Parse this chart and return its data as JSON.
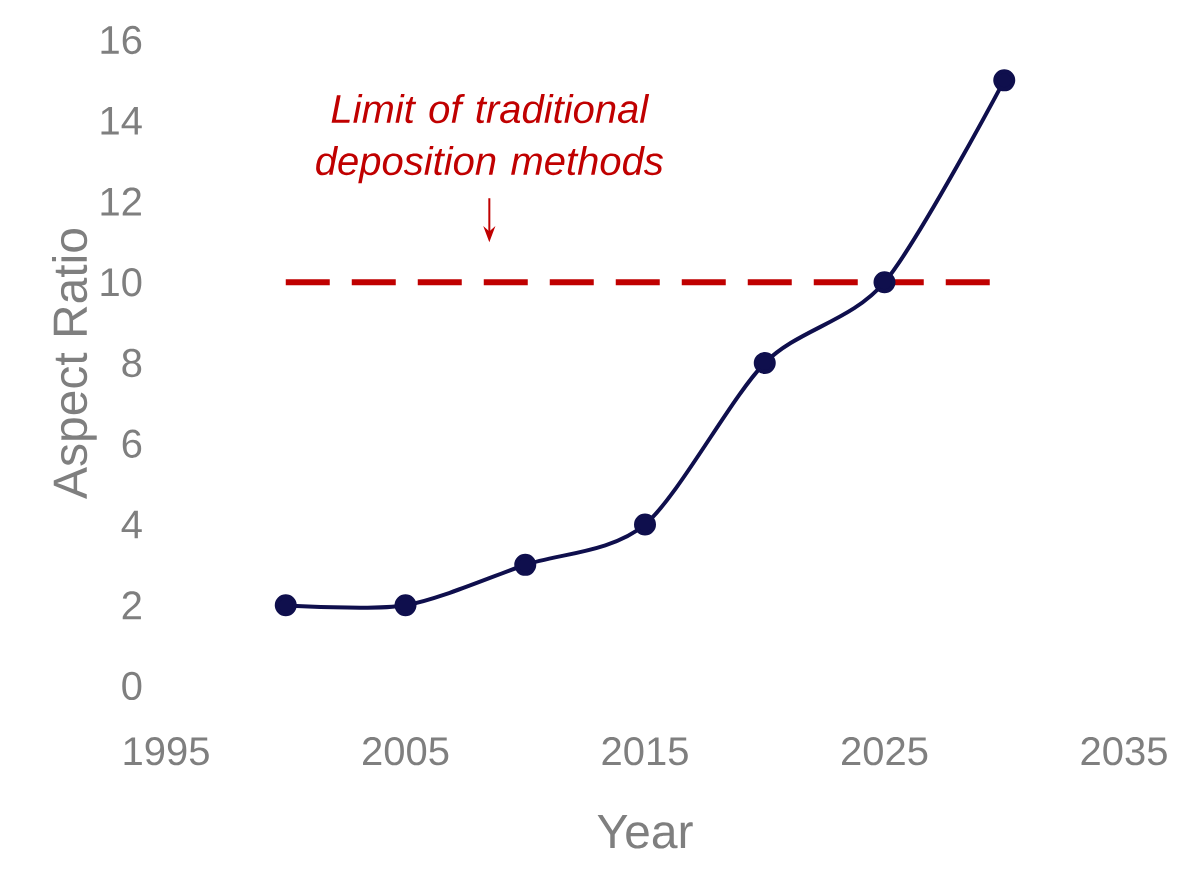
{
  "chart_data": {
    "type": "line",
    "xlabel": "Year",
    "ylabel": "Aspect Ratio",
    "x": [
      2000,
      2005,
      2010,
      2015,
      2020,
      2025,
      2030
    ],
    "series": [
      {
        "color": "#0f0f4d",
        "values": [
          2,
          2,
          3,
          4,
          8,
          10,
          15
        ]
      }
    ],
    "marker": "circle",
    "line_style": "solid",
    "xlim": [
      1995,
      2035
    ],
    "xticks": [
      1995,
      2005,
      2015,
      2025,
      2035
    ],
    "ylim": [
      0,
      16
    ],
    "yticks": [
      0,
      2,
      4,
      6,
      8,
      10,
      12,
      14,
      16
    ],
    "ref_lines": [
      {
        "axis": "y",
        "value": 10,
        "color": "#c00000",
        "line_style": "dashed"
      }
    ],
    "annotations": [
      {
        "text": "Limit of traditional deposition methods",
        "x": 2008.5,
        "y": 10
      }
    ]
  }
}
